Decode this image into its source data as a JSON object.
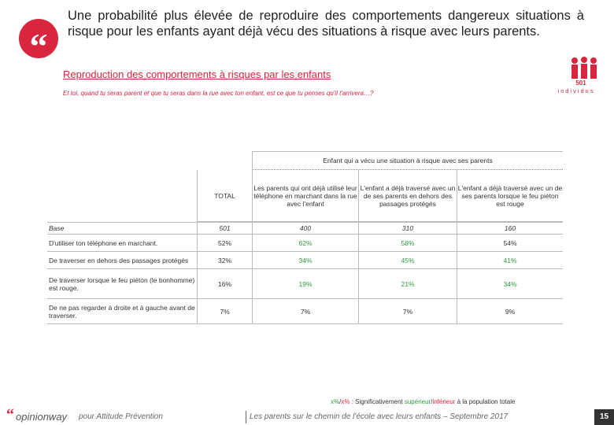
{
  "header": {
    "title": "Une probabilité plus élevée de reproduire des comportements dangereux situations à risque pour les enfants ayant déjà vécu des situations à risque avec leurs parents.",
    "subtitle": "Reproduction des comportements à risques par les enfants",
    "question": "Et toi, quand tu seras parent et que tu seras dans la rue avec ton enfant, est ce que tu penses qu'il t'arrivera…?",
    "badge_number": "501",
    "badge_label": "individus"
  },
  "table": {
    "group_header": "Enfant qui a vécu une situation à risque avec ses parents",
    "columns": [
      "TOTAL",
      "Les parents qui ont déjà utilisé leur téléphone en marchant dans la rue avec l'enfant",
      "L'enfant a déjà traversé avec un de ses parents en dehors des passages protégés",
      "L'enfant a déjà traversé avec un de ses parents lorsque le feu piéton est rouge"
    ],
    "base": {
      "label": "Base",
      "values": [
        "501",
        "400",
        "310",
        "160"
      ]
    },
    "rows": [
      {
        "label": "D'utiliser ton téléphone en marchant.",
        "values": [
          "52%",
          "62%",
          "58%",
          "54%"
        ],
        "colors": [
          "#333333",
          "#2e9b3e",
          "#2e9b3e",
          "#333333"
        ]
      },
      {
        "label": "De traverser en dehors des passages protégés",
        "values": [
          "32%",
          "34%",
          "45%",
          "41%"
        ],
        "colors": [
          "#333333",
          "#2e9b3e",
          "#2e9b3e",
          "#2e9b3e"
        ]
      },
      {
        "label": "De traverser lorsque le feu piéton (le bonhomme) est rouge.",
        "values": [
          "16%",
          "19%",
          "21%",
          "34%"
        ],
        "colors": [
          "#333333",
          "#2e9b3e",
          "#2e9b3e",
          "#2e9b3e"
        ]
      },
      {
        "label": "De ne pas regarder à droite et à gauche avant de traverser.",
        "values": [
          "7%",
          "7%",
          "7%",
          "9%"
        ],
        "colors": [
          "#333333",
          "#333333",
          "#333333",
          "#333333"
        ]
      }
    ]
  },
  "legend": [
    {
      "text": "x%",
      "color": "#2e9b3e"
    },
    {
      "text": "/",
      "color": "#333333"
    },
    {
      "text": "x%",
      "color": "#d7263d"
    },
    {
      "text": " : Significativement ",
      "color": "#333333"
    },
    {
      "text": "supérieur",
      "color": "#2e9b3e"
    },
    {
      "text": "/",
      "color": "#333333"
    },
    {
      "text": "inférieur",
      "color": "#d7263d"
    },
    {
      "text": " à la population totale",
      "color": "#333333"
    }
  ],
  "footer": {
    "logo_mark": "“",
    "logo": "opinionway",
    "client": "pour Attitude Prévention",
    "study": "Les parents sur le chemin de l'école avec leurs enfants – Septembre 2017",
    "page": "15"
  }
}
